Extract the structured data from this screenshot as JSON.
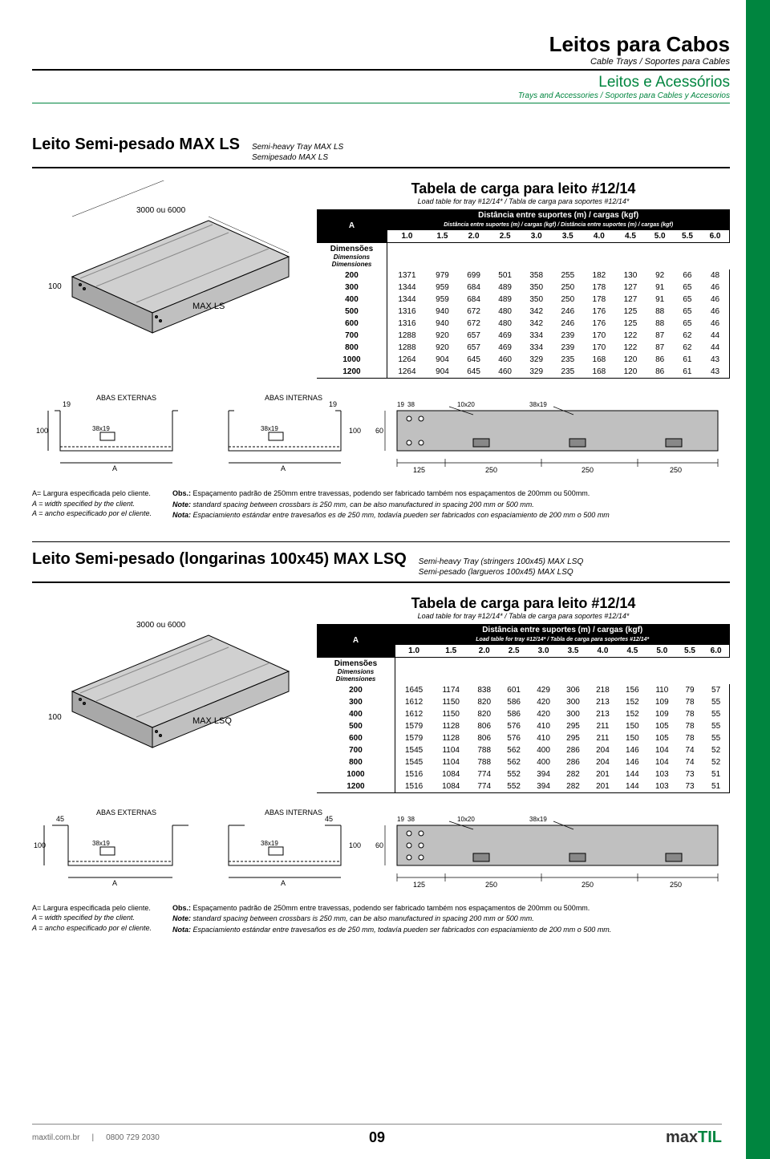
{
  "header": {
    "title": "Leitos para Cabos",
    "subtitle": "Cable Trays / Soportes para Cables",
    "section": "Leitos e Acessórios",
    "section_sub": "Trays and Accessories / Soportes para Cables y Accesorios"
  },
  "product1": {
    "name": "Leito Semi-pesado MAX LS",
    "trans1": "Semi-heavy Tray MAX LS",
    "trans2": "Semipesado MAX LS",
    "dim_label": "3000 ou 6000",
    "height_label": "100",
    "tag": "MAX LS",
    "table": {
      "title": "Tabela de carga para leito #12/14",
      "subtitle": "Load table for tray #12/14* / Tabla de carga para soportes #12/14*",
      "a_label": "A",
      "dist_label": "Distância entre suportes (m) / cargas (kgf)",
      "dist_sub": "Distância entre suportes (m) / cargas (kgf) / Distância entre suportes (m) / cargas (kgf)",
      "dim_label": "Dimensões",
      "dim_sub1": "Dimensions",
      "dim_sub2": "Dimensiones",
      "columns": [
        "1.0",
        "1.5",
        "2.0",
        "2.5",
        "3.0",
        "3.5",
        "4.0",
        "4.5",
        "5.0",
        "5.5",
        "6.0"
      ],
      "rows": [
        [
          "200",
          "1371",
          "979",
          "699",
          "501",
          "358",
          "255",
          "182",
          "130",
          "92",
          "66",
          "48"
        ],
        [
          "300",
          "1344",
          "959",
          "684",
          "489",
          "350",
          "250",
          "178",
          "127",
          "91",
          "65",
          "46"
        ],
        [
          "400",
          "1344",
          "959",
          "684",
          "489",
          "350",
          "250",
          "178",
          "127",
          "91",
          "65",
          "46"
        ],
        [
          "500",
          "1316",
          "940",
          "672",
          "480",
          "342",
          "246",
          "176",
          "125",
          "88",
          "65",
          "46"
        ],
        [
          "600",
          "1316",
          "940",
          "672",
          "480",
          "342",
          "246",
          "176",
          "125",
          "88",
          "65",
          "46"
        ],
        [
          "700",
          "1288",
          "920",
          "657",
          "469",
          "334",
          "239",
          "170",
          "122",
          "87",
          "62",
          "44"
        ],
        [
          "800",
          "1288",
          "920",
          "657",
          "469",
          "334",
          "239",
          "170",
          "122",
          "87",
          "62",
          "44"
        ],
        [
          "1000",
          "1264",
          "904",
          "645",
          "460",
          "329",
          "235",
          "168",
          "120",
          "86",
          "61",
          "43"
        ],
        [
          "1200",
          "1264",
          "904",
          "645",
          "460",
          "329",
          "235",
          "168",
          "120",
          "86",
          "61",
          "43"
        ]
      ]
    },
    "profiles": {
      "ext_label": "ABAS EXTERNAS",
      "int_label": "ABAS INTERNAS",
      "h": "100",
      "flange": "19",
      "hole": "38x19",
      "a": "A",
      "side_h": "60",
      "top_dims": [
        "19",
        "38"
      ],
      "slot1": "10x20",
      "slot2": "38x19",
      "bottom_dims": [
        "125",
        "250",
        "250",
        "250"
      ]
    },
    "notes": {
      "left1": "A= Largura especificada pelo cliente.",
      "left2": "A = width specified by the client.",
      "left3": "A = ancho especificado por el cliente.",
      "r1_label": "Obs.:",
      "r1": "Espaçamento padrão de 250mm entre travessas, podendo ser fabricado também nos espaçamentos de 200mm ou 500mm.",
      "r2_label": "Note:",
      "r2": "standard spacing between crossbars is 250 mm, can be also manufactured in spacing 200 mm or 500 mm.",
      "r3_label": "Nota:",
      "r3": "Espaciamiento estándar entre travesaños es de 250 mm, todavía pueden ser fabricados con espaciamiento de 200 mm o 500 mm"
    }
  },
  "product2": {
    "name": "Leito Semi-pesado (longarinas 100x45) MAX LSQ",
    "trans1": "Semi-heavy Tray (stringers 100x45) MAX LSQ",
    "trans2": "Semi-pesado (largueros 100x45) MAX LSQ",
    "dim_label": "3000 ou 6000",
    "height_label": "100",
    "tag": "MAX LSQ",
    "table": {
      "title": "Tabela de carga para leito #12/14",
      "subtitle": "Load table for tray #12/14* / Tabla de carga para soportes #12/14*",
      "a_label": "A",
      "dist_label": "Distância entre suportes (m) / cargas (kgf)",
      "dist_sub": "Load table for tray #12/14* / Tabla de carga para soportes #12/14*",
      "dim_label": "Dimensões",
      "dim_sub1": "Dimensions",
      "dim_sub2": "Dimensiones",
      "columns": [
        "1.0",
        "1.5",
        "2.0",
        "2.5",
        "3.0",
        "3.5",
        "4.0",
        "4.5",
        "5.0",
        "5.5",
        "6.0"
      ],
      "rows": [
        [
          "200",
          "1645",
          "1174",
          "838",
          "601",
          "429",
          "306",
          "218",
          "156",
          "110",
          "79",
          "57"
        ],
        [
          "300",
          "1612",
          "1150",
          "820",
          "586",
          "420",
          "300",
          "213",
          "152",
          "109",
          "78",
          "55"
        ],
        [
          "400",
          "1612",
          "1150",
          "820",
          "586",
          "420",
          "300",
          "213",
          "152",
          "109",
          "78",
          "55"
        ],
        [
          "500",
          "1579",
          "1128",
          "806",
          "576",
          "410",
          "295",
          "211",
          "150",
          "105",
          "78",
          "55"
        ],
        [
          "600",
          "1579",
          "1128",
          "806",
          "576",
          "410",
          "295",
          "211",
          "150",
          "105",
          "78",
          "55"
        ],
        [
          "700",
          "1545",
          "1104",
          "788",
          "562",
          "400",
          "286",
          "204",
          "146",
          "104",
          "74",
          "52"
        ],
        [
          "800",
          "1545",
          "1104",
          "788",
          "562",
          "400",
          "286",
          "204",
          "146",
          "104",
          "74",
          "52"
        ],
        [
          "1000",
          "1516",
          "1084",
          "774",
          "552",
          "394",
          "282",
          "201",
          "144",
          "103",
          "73",
          "51"
        ],
        [
          "1200",
          "1516",
          "1084",
          "774",
          "552",
          "394",
          "282",
          "201",
          "144",
          "103",
          "73",
          "51"
        ]
      ]
    },
    "profiles": {
      "ext_label": "ABAS EXTERNAS",
      "int_label": "ABAS INTERNAS",
      "h": "100",
      "flange": "45",
      "hole": "38x19",
      "a": "A",
      "side_h": "60",
      "top_dims": [
        "19",
        "38"
      ],
      "slot1": "10x20",
      "slot2": "38x19",
      "bottom_dims": [
        "125",
        "250",
        "250",
        "250"
      ]
    },
    "notes": {
      "left1": "A= Largura especificada pelo cliente.",
      "left2": "A = width specified by the client.",
      "left3": "A = ancho especificado por el cliente.",
      "r1_label": "Obs.:",
      "r1": "Espaçamento padrão de 250mm entre travessas, podendo ser fabricado também nos espaçamentos de 200mm ou 500mm.",
      "r2_label": "Note:",
      "r2": "standard spacing between crossbars is 250 mm, can be also manufactured in spacing 200 mm or 500 mm.",
      "r3_label": "Nota:",
      "r3": "Espaciamiento estándar entre travesaños es de 250 mm, todavía pueden ser fabricados con espaciamiento de 200 mm o 500 mm."
    }
  },
  "footer": {
    "url": "maxtil.com.br",
    "phone": "0800 729 2030",
    "page": "09",
    "logo1": "max",
    "logo2": "TIL"
  },
  "colors": {
    "green": "#00853f",
    "gray_fill": "#b8b8b8",
    "gray_dark": "#888888"
  }
}
